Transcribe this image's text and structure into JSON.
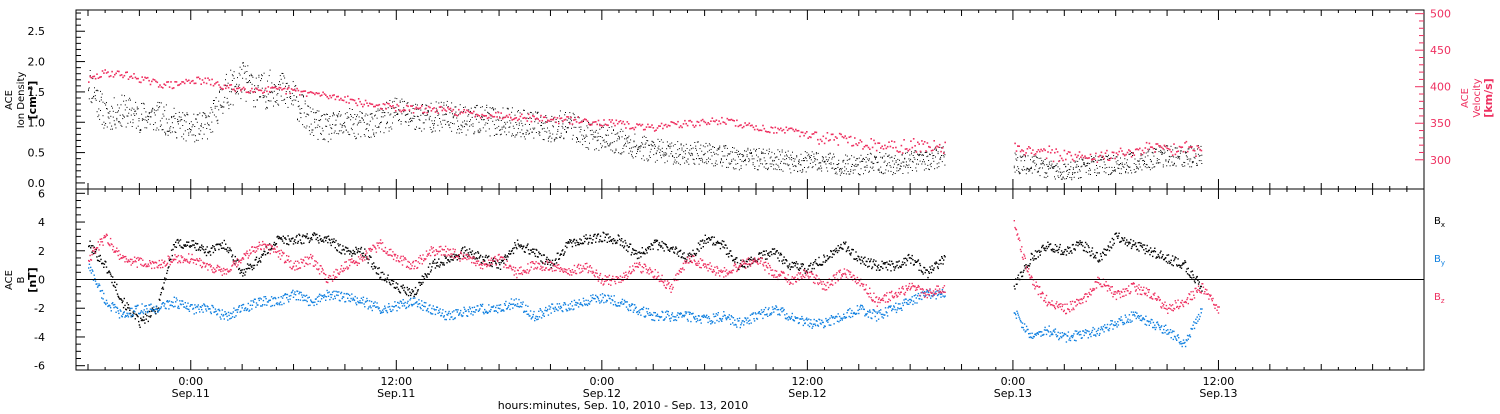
{
  "chart_data": [
    {
      "type": "scatter",
      "panel": "top",
      "ylabel_left": [
        "ACE",
        "Ion Density",
        "[cm⁻³]"
      ],
      "ylabel_right": [
        "ACE",
        "Velocity",
        "[km/s]"
      ],
      "left_axis": {
        "ylim": [
          -0.1,
          2.85
        ],
        "ticks": [
          "0.0",
          "0.5",
          "1.0",
          "1.5",
          "2.0",
          "2.5"
        ],
        "tick_values": [
          0.0,
          0.5,
          1.0,
          1.5,
          2.0,
          2.5
        ]
      },
      "right_axis": {
        "ylim": [
          260,
          505
        ],
        "ticks": [
          "300",
          "350",
          "400",
          "450",
          "500"
        ],
        "tick_values": [
          300,
          350,
          400,
          450,
          500
        ]
      },
      "grid": false,
      "series": [
        {
          "color": "#000000",
          "axis": "left",
          "x": [
            -6,
            -5,
            -4,
            -3,
            -2,
            -1,
            0,
            1,
            2,
            3,
            4,
            5,
            6,
            7,
            8,
            9,
            10,
            11,
            12,
            13,
            14,
            15,
            16,
            17,
            18,
            19,
            20,
            21,
            22,
            23,
            24,
            25,
            26,
            27,
            28,
            29,
            30,
            31,
            32,
            33,
            34,
            35,
            36,
            37,
            38,
            39,
            40,
            41,
            42,
            43,
            44,
            45,
            46,
            47,
            48,
            49,
            50,
            51,
            52,
            53,
            54,
            55,
            56,
            57,
            58,
            59,
            60,
            61,
            62
          ],
          "y": [
            1.7,
            1.1,
            1.2,
            1.1,
            1.1,
            1.0,
            0.9,
            0.95,
            1.5,
            1.7,
            1.5,
            1.6,
            1.4,
            1.0,
            0.9,
            1.0,
            0.95,
            1.0,
            1.2,
            1.1,
            1.1,
            1.1,
            1.05,
            1.05,
            1.0,
            1.0,
            0.95,
            0.9,
            1.0,
            0.8,
            0.75,
            0.7,
            0.6,
            0.55,
            0.5,
            0.5,
            0.5,
            0.45,
            0.4,
            0.4,
            0.4,
            0.35,
            0.35,
            0.35,
            0.3,
            0.3,
            0.35,
            0.3,
            0.35,
            0.4,
            0.45,
            null,
            null,
            null,
            0.35,
            0.3,
            0.25,
            0.2,
            0.25,
            0.3,
            0.3,
            0.35,
            0.4,
            0.45,
            0.4,
            0.5,
            null,
            null,
            null
          ]
        },
        {
          "color": "#ee3060",
          "axis": "right",
          "x": [
            -6,
            -5,
            -4,
            -3,
            -2,
            -1,
            0,
            1,
            2,
            3,
            4,
            5,
            6,
            7,
            8,
            9,
            10,
            11,
            12,
            13,
            14,
            15,
            16,
            17,
            18,
            19,
            20,
            21,
            22,
            23,
            24,
            25,
            26,
            27,
            28,
            29,
            30,
            31,
            32,
            33,
            34,
            35,
            36,
            37,
            38,
            39,
            40,
            41,
            42,
            43,
            44,
            45,
            46,
            47,
            48,
            49,
            50,
            51,
            52,
            53,
            54,
            55,
            56,
            57,
            58,
            59,
            60,
            61,
            62
          ],
          "y": [
            410,
            420,
            418,
            412,
            405,
            403,
            410,
            408,
            400,
            398,
            397,
            396,
            395,
            392,
            388,
            385,
            378,
            375,
            372,
            370,
            370,
            368,
            365,
            363,
            362,
            360,
            358,
            356,
            355,
            354,
            352,
            350,
            346,
            345,
            350,
            350,
            352,
            355,
            350,
            345,
            342,
            340,
            335,
            332,
            330,
            325,
            322,
            320,
            320,
            320,
            318,
            null,
            null,
            null,
            318,
            315,
            310,
            305,
            305,
            305,
            310,
            312,
            318,
            315,
            320,
            315,
            null,
            null,
            null
          ]
        }
      ]
    },
    {
      "type": "scatter",
      "panel": "bottom",
      "ylabel_left": [
        "ACE",
        "B",
        "[nT]"
      ],
      "ylim": [
        -6.3,
        6.3
      ],
      "ticks": [
        "-6",
        "-4",
        "-2",
        "0",
        "2",
        "4",
        "6"
      ],
      "tick_values": [
        -6,
        -4,
        -2,
        0,
        2,
        4,
        6
      ],
      "zero_line": true,
      "grid": false,
      "series": [
        {
          "name": "Bx",
          "label_text": "B",
          "label_sub": "x",
          "color": "#000000",
          "x": [
            -6,
            -5,
            -4,
            -3,
            -2,
            -1,
            0,
            1,
            2,
            3,
            4,
            5,
            6,
            7,
            8,
            9,
            10,
            11,
            12,
            13,
            14,
            15,
            16,
            17,
            18,
            19,
            20,
            21,
            22,
            23,
            24,
            25,
            26,
            27,
            28,
            29,
            30,
            31,
            32,
            33,
            34,
            35,
            36,
            37,
            38,
            39,
            40,
            41,
            42,
            43,
            44,
            45,
            46,
            47,
            48,
            49,
            50,
            51,
            52,
            53,
            54,
            55,
            56,
            57,
            58,
            59,
            60,
            61,
            62
          ],
          "y": [
            2.5,
            1.0,
            -1.5,
            -3.0,
            -2.0,
            2.5,
            2.5,
            2.0,
            2.5,
            0.5,
            1.5,
            2.8,
            2.8,
            3.0,
            2.8,
            2.0,
            2.0,
            0.5,
            -0.5,
            -1.0,
            1.0,
            1.5,
            2.0,
            1.5,
            1.0,
            2.5,
            2.0,
            1.0,
            2.5,
            2.8,
            3.0,
            2.8,
            1.8,
            2.5,
            2.2,
            1.5,
            2.8,
            2.5,
            1.0,
            1.5,
            2.0,
            1.0,
            0.8,
            1.5,
            2.5,
            1.5,
            1.0,
            1.0,
            1.5,
            0.5,
            1.5,
            null,
            null,
            null,
            -0.5,
            1.5,
            2.5,
            2.0,
            2.5,
            1.5,
            3.0,
            2.5,
            2.0,
            1.5,
            1.0,
            -0.5,
            null,
            null,
            null
          ]
        },
        {
          "name": "By",
          "label_text": "B",
          "label_sub": "y",
          "color": "#1080e0",
          "x": [
            -6,
            -5,
            -4,
            -3,
            -2,
            -1,
            0,
            1,
            2,
            3,
            4,
            5,
            6,
            7,
            8,
            9,
            10,
            11,
            12,
            13,
            14,
            15,
            16,
            17,
            18,
            19,
            20,
            21,
            22,
            23,
            24,
            25,
            26,
            27,
            28,
            29,
            30,
            31,
            32,
            33,
            34,
            35,
            36,
            37,
            38,
            39,
            40,
            41,
            42,
            43,
            44,
            45,
            46,
            47,
            48,
            49,
            50,
            51,
            52,
            53,
            54,
            55,
            56,
            57,
            58,
            59,
            60,
            61,
            62
          ],
          "y": [
            1.0,
            -1.5,
            -2.5,
            -2.0,
            -2.0,
            -1.5,
            -2.0,
            -2.0,
            -2.5,
            -2.0,
            -1.5,
            -1.5,
            -1.0,
            -1.5,
            -1.0,
            -1.2,
            -1.5,
            -2.0,
            -1.8,
            -1.5,
            -2.0,
            -2.5,
            -2.2,
            -2.0,
            -2.0,
            -1.5,
            -2.5,
            -2.0,
            -1.8,
            -1.5,
            -1.2,
            -1.5,
            -2.0,
            -2.5,
            -2.5,
            -2.5,
            -2.8,
            -2.5,
            -3.0,
            -2.5,
            -2.0,
            -2.5,
            -3.0,
            -3.0,
            -2.5,
            -2.0,
            -2.5,
            -2.0,
            -1.5,
            -1.0,
            -1.0,
            null,
            null,
            null,
            -2.0,
            -4.0,
            -3.5,
            -4.0,
            -3.8,
            -3.5,
            -3.0,
            -2.5,
            -3.0,
            -3.5,
            -4.5,
            -2.0,
            null,
            null,
            null
          ]
        },
        {
          "name": "Bz",
          "label_text": "B",
          "label_sub": "z",
          "color": "#ee3060",
          "x": [
            -6,
            -5,
            -4,
            -3,
            -2,
            -1,
            0,
            1,
            2,
            3,
            4,
            5,
            6,
            7,
            8,
            9,
            10,
            11,
            12,
            13,
            14,
            15,
            16,
            17,
            18,
            19,
            20,
            21,
            22,
            23,
            24,
            25,
            26,
            27,
            28,
            29,
            30,
            31,
            32,
            33,
            34,
            35,
            36,
            37,
            38,
            39,
            40,
            41,
            42,
            43,
            44,
            45,
            46,
            47,
            48,
            49,
            50,
            51,
            52,
            53,
            54,
            55,
            56,
            57,
            58,
            59,
            60,
            61,
            62
          ],
          "y": [
            1.5,
            3.0,
            1.5,
            1.2,
            1.0,
            1.5,
            1.5,
            1.0,
            0.5,
            1.5,
            2.5,
            2.0,
            1.0,
            1.5,
            0.0,
            1.0,
            1.5,
            2.5,
            1.5,
            1.0,
            2.0,
            2.0,
            1.5,
            1.0,
            1.5,
            0.5,
            1.0,
            1.0,
            0.5,
            1.0,
            0.0,
            0.0,
            1.0,
            0.5,
            -0.5,
            1.5,
            1.0,
            0.5,
            1.0,
            1.5,
            0.5,
            0.0,
            0.5,
            -0.5,
            0.5,
            0.0,
            -1.5,
            -1.0,
            -0.5,
            -1.0,
            -0.5,
            null,
            null,
            null,
            4.0,
            0.0,
            -1.5,
            -2.0,
            -1.5,
            0.0,
            -1.0,
            -0.5,
            -1.0,
            -2.0,
            -1.5,
            -0.5,
            -2.0,
            null,
            null
          ]
        }
      ]
    }
  ],
  "xaxis": {
    "range_hours": [
      -6.7,
      72.0
    ],
    "ticks": [
      {
        "x": 0,
        "time": "0:00",
        "date": "Sep.11"
      },
      {
        "x": 12,
        "time": "12:00",
        "date": "Sep.11"
      },
      {
        "x": 24,
        "time": "0:00",
        "date": "Sep.12"
      },
      {
        "x": 36,
        "time": "12:00",
        "date": "Sep.12"
      },
      {
        "x": 48,
        "time": "0:00",
        "date": "Sep.13"
      },
      {
        "x": 60,
        "time": "12:00",
        "date": "Sep.13"
      }
    ],
    "label": "hours:minutes, Sep. 10, 2010 - Sep. 13, 2010"
  }
}
